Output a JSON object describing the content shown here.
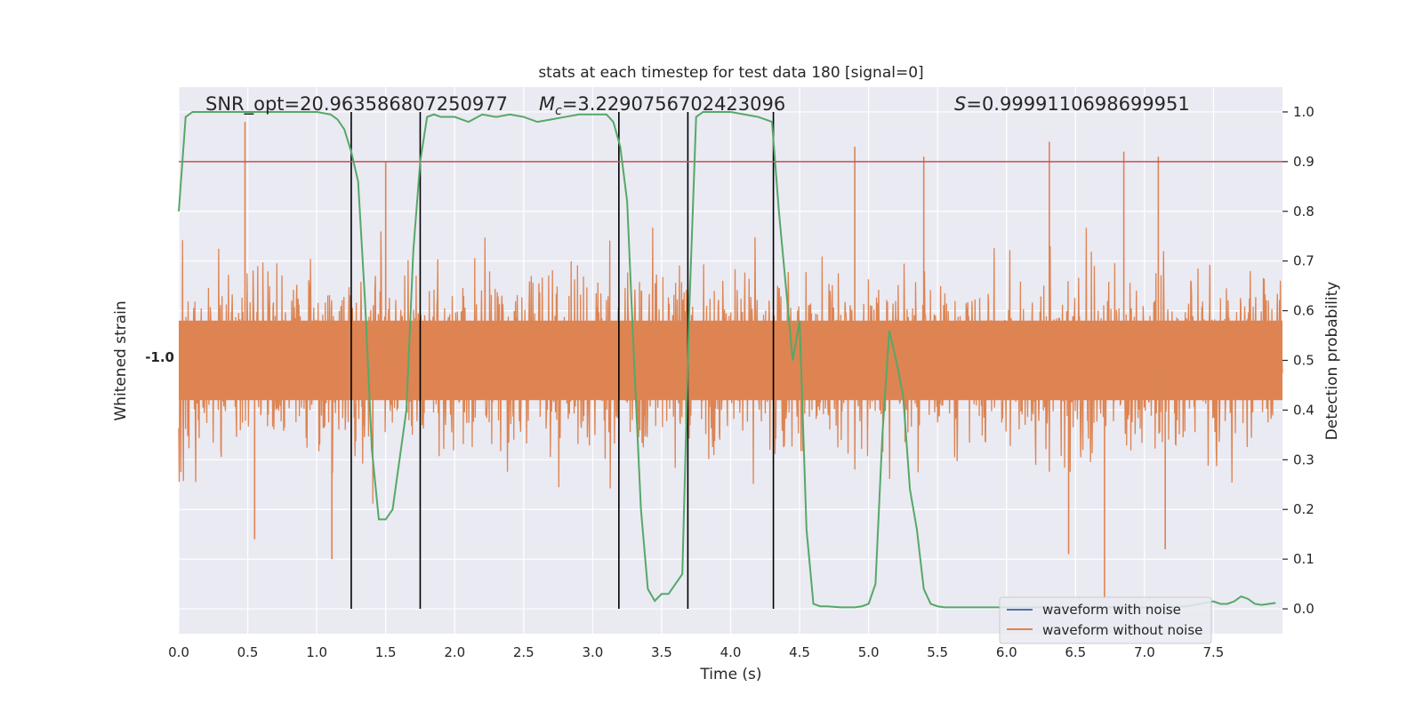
{
  "chart_data": {
    "type": "line",
    "title": "stats at each timestep for test data 180 [signal=0]",
    "xlabel": "Time (s)",
    "ylabel_left": "Whitened strain",
    "ylabel_right": "Detection probability",
    "xlim": [
      0.0,
      8.0
    ],
    "ylim_right": [
      -0.05,
      1.05
    ],
    "x_ticks": [
      0.0,
      0.5,
      1.0,
      1.5,
      2.0,
      2.5,
      3.0,
      3.5,
      4.0,
      4.5,
      5.0,
      5.5,
      6.0,
      6.5,
      7.0,
      7.5
    ],
    "x_tick_labels": [
      "0.0",
      "0.5",
      "1.0",
      "1.5",
      "2.0",
      "2.5",
      "3.0",
      "3.5",
      "4.0",
      "4.5",
      "5.0",
      "5.5",
      "6.0",
      "6.5",
      "7.0",
      "7.5"
    ],
    "y_right_ticks": [
      0.0,
      0.1,
      0.2,
      0.3,
      0.4,
      0.5,
      0.6,
      0.7,
      0.8,
      0.9,
      1.0
    ],
    "y_right_tick_labels": [
      "0.0",
      "0.1",
      "0.2",
      "0.3",
      "0.4",
      "0.5",
      "0.6",
      "0.7",
      "0.8",
      "0.9",
      "1.0"
    ],
    "grid": true,
    "legend_placement": "lower-right",
    "annotations": {
      "snr": "SNR_opt=20.963586807250977",
      "mc": "=3.2290756702423096",
      "mc_symbol": "M",
      "mc_subscript": "c",
      "s": "=0.9999110698699951",
      "s_symbol": "S"
    },
    "threshold": 0.9,
    "vertical_lines_x": [
      1.25,
      1.75,
      3.19,
      3.69,
      4.31
    ],
    "series": [
      {
        "name": "waveform with noise",
        "color": "#4c72b0",
        "role": "legend"
      },
      {
        "name": "waveform without noise",
        "color": "#dd8452",
        "role": "strain",
        "mean_prob_level": 0.5,
        "sigma_prob": 0.085
      },
      {
        "color": "#55a868",
        "role": "detection_probability",
        "x": [
          0.0,
          0.05,
          0.1,
          0.2,
          0.4,
          0.6,
          0.8,
          1.0,
          1.1,
          1.15,
          1.2,
          1.25,
          1.3,
          1.35,
          1.4,
          1.45,
          1.5,
          1.55,
          1.6,
          1.65,
          1.7,
          1.75,
          1.8,
          1.85,
          1.9,
          2.0,
          2.1,
          2.2,
          2.3,
          2.4,
          2.5,
          2.6,
          2.7,
          2.8,
          2.9,
          3.0,
          3.1,
          3.15,
          3.2,
          3.25,
          3.3,
          3.35,
          3.4,
          3.45,
          3.5,
          3.55,
          3.6,
          3.65,
          3.7,
          3.75,
          3.8,
          3.85,
          3.9,
          4.0,
          4.1,
          4.2,
          4.25,
          4.3,
          4.35,
          4.4,
          4.45,
          4.5,
          4.55,
          4.6,
          4.65,
          4.7,
          4.8,
          4.9,
          4.95,
          5.0,
          5.05,
          5.1,
          5.15,
          5.2,
          5.25,
          5.3,
          5.35,
          5.4,
          5.45,
          5.5,
          5.55,
          5.6,
          5.7,
          5.8,
          6.0,
          6.2,
          6.4,
          6.6,
          6.8,
          7.0,
          7.2,
          7.3,
          7.4,
          7.5,
          7.55,
          7.6,
          7.65,
          7.7,
          7.75,
          7.8,
          7.85,
          7.9,
          7.95
        ],
        "y": [
          0.8,
          0.99,
          1.0,
          1.0,
          1.0,
          1.0,
          1.0,
          1.0,
          0.995,
          0.985,
          0.965,
          0.92,
          0.86,
          0.62,
          0.32,
          0.18,
          0.18,
          0.2,
          0.3,
          0.4,
          0.72,
          0.9,
          0.99,
          0.995,
          0.99,
          0.99,
          0.98,
          0.995,
          0.99,
          0.995,
          0.99,
          0.98,
          0.985,
          0.99,
          0.995,
          0.995,
          0.995,
          0.98,
          0.93,
          0.82,
          0.5,
          0.2,
          0.04,
          0.016,
          0.03,
          0.03,
          0.05,
          0.07,
          0.6,
          0.99,
          1.0,
          1.0,
          1.0,
          1.0,
          0.995,
          0.99,
          0.985,
          0.98,
          0.8,
          0.65,
          0.5,
          0.58,
          0.16,
          0.01,
          0.005,
          0.005,
          0.003,
          0.003,
          0.005,
          0.01,
          0.05,
          0.35,
          0.56,
          0.5,
          0.43,
          0.24,
          0.16,
          0.04,
          0.01,
          0.005,
          0.003,
          0.003,
          0.003,
          0.003,
          0.003,
          0.003,
          0.003,
          0.003,
          0.003,
          0.003,
          0.003,
          0.005,
          0.01,
          0.015,
          0.01,
          0.01,
          0.015,
          0.025,
          0.02,
          0.01,
          0.008,
          0.01,
          0.012
        ]
      }
    ],
    "left_axis_tick_label": "-1.0",
    "strain_spikes": [
      {
        "x": 0.48,
        "y": 0.98
      },
      {
        "x": 1.5,
        "y": 0.9
      },
      {
        "x": 4.9,
        "y": 0.93
      },
      {
        "x": 5.4,
        "y": 0.91
      },
      {
        "x": 6.31,
        "y": 0.94
      },
      {
        "x": 6.85,
        "y": 0.92
      },
      {
        "x": 7.1,
        "y": 0.91
      },
      {
        "x": 6.71,
        "y": 0.02
      },
      {
        "x": 1.11,
        "y": 0.1
      },
      {
        "x": 6.45,
        "y": 0.11
      },
      {
        "x": 0.55,
        "y": 0.14
      },
      {
        "x": 7.15,
        "y": 0.12
      }
    ]
  }
}
